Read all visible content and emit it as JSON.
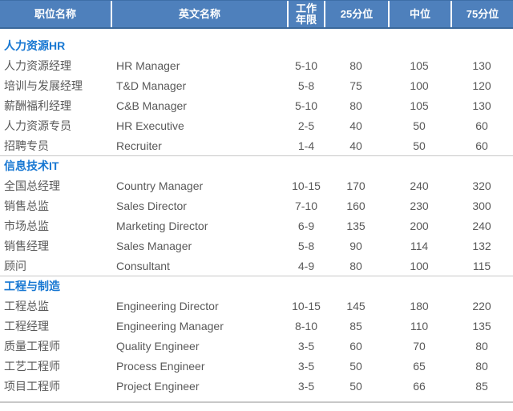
{
  "colors": {
    "header_bg": "#4E80BC",
    "header_text": "#FFFFFF",
    "header_bottom_border": "#3A689B",
    "section_title_text": "#1777D2",
    "body_text": "#595959",
    "separator_line": "#C8C8C8"
  },
  "chart_data": {
    "type": "table",
    "headers": [
      "职位名称",
      "英文名称",
      "工作年限",
      "25分位",
      "中位",
      "75分位"
    ],
    "sections": [
      {
        "title": "人力资源HR",
        "rows": [
          [
            "人力资源经理",
            "HR Manager",
            "5-10",
            "80",
            "105",
            "130"
          ],
          [
            "培训与发展经理",
            "T&D Manager",
            "5-8",
            "75",
            "100",
            "120"
          ],
          [
            "薪酬福利经理",
            "C&B Manager",
            "5-10",
            "80",
            "105",
            "130"
          ],
          [
            "人力资源专员",
            "HR Executive",
            "2-5",
            "40",
            "50",
            "60"
          ],
          [
            "招聘专员",
            "Recruiter",
            "1-4",
            "40",
            "50",
            "60"
          ]
        ]
      },
      {
        "title": "信息技术IT",
        "rows": [
          [
            "全国总经理",
            "Country Manager",
            "10-15",
            "170",
            "240",
            "320"
          ],
          [
            "销售总监",
            "Sales Director",
            "7-10",
            "160",
            "230",
            "300"
          ],
          [
            "市场总监",
            "Marketing Director",
            "6-9",
            "135",
            "200",
            "240"
          ],
          [
            "销售经理",
            "Sales Manager",
            "5-8",
            "90",
            "114",
            "132"
          ],
          [
            "顾问",
            "Consultant",
            "4-9",
            "80",
            "100",
            "115"
          ]
        ]
      },
      {
        "title": "工程与制造",
        "rows": [
          [
            "工程总监",
            "Engineering Director",
            "10-15",
            "145",
            "180",
            "220"
          ],
          [
            "工程经理",
            "Engineering Manager",
            "8-10",
            "85",
            "110",
            "135"
          ],
          [
            "质量工程师",
            "Quality Engineer",
            "3-5",
            "60",
            "70",
            "80"
          ],
          [
            "工艺工程师",
            "Process Engineer",
            "3-5",
            "50",
            "65",
            "80"
          ],
          [
            "项目工程师",
            "Project Engineer",
            "3-5",
            "50",
            "66",
            "85"
          ]
        ]
      }
    ]
  }
}
